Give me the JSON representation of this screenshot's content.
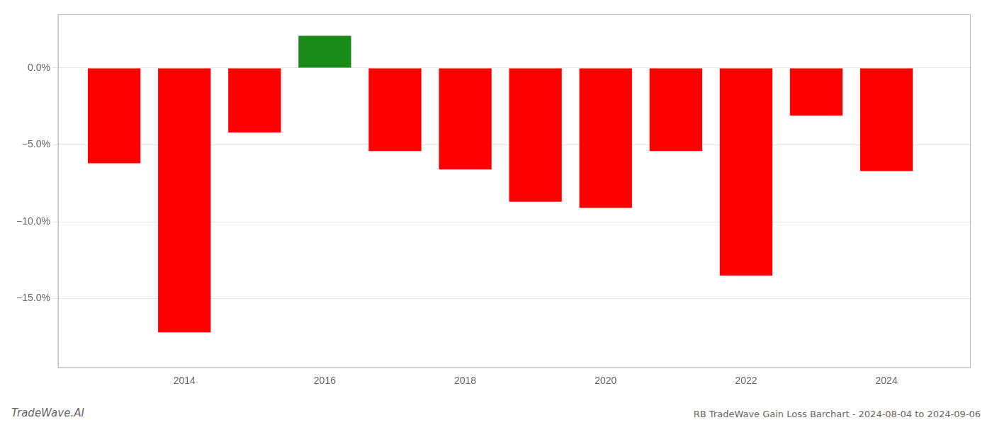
{
  "chart_data": {
    "type": "bar",
    "x": [
      2013,
      2014,
      2015,
      2016,
      2017,
      2018,
      2019,
      2020,
      2021,
      2022,
      2023,
      2024
    ],
    "values": [
      -6.2,
      -17.2,
      -4.2,
      2.1,
      -5.4,
      -6.6,
      -8.7,
      -9.1,
      -5.4,
      -13.5,
      -3.1,
      -6.7
    ],
    "colors": [
      "#ff0000",
      "#ff0000",
      "#ff0000",
      "#1a8a1a",
      "#ff0000",
      "#ff0000",
      "#ff0000",
      "#ff0000",
      "#ff0000",
      "#ff0000",
      "#ff0000",
      "#ff0000"
    ],
    "xlim": [
      2012.2,
      2025.2
    ],
    "xticks": [
      2014,
      2016,
      2018,
      2020,
      2022,
      2024
    ],
    "ylim": [
      -19.5,
      3.5
    ],
    "yticks": [
      {
        "value": 0.0,
        "label": "0.0%"
      },
      {
        "value": -5.0,
        "label": "−5.0%"
      },
      {
        "value": -10.0,
        "label": "−10.0%"
      },
      {
        "value": -15.0,
        "label": "−15.0%"
      }
    ],
    "grid": true,
    "annotations": [
      "TradeWave.AI",
      "RB TradeWave Gain Loss Barchart - 2024-08-04 to 2024-09-06"
    ]
  }
}
